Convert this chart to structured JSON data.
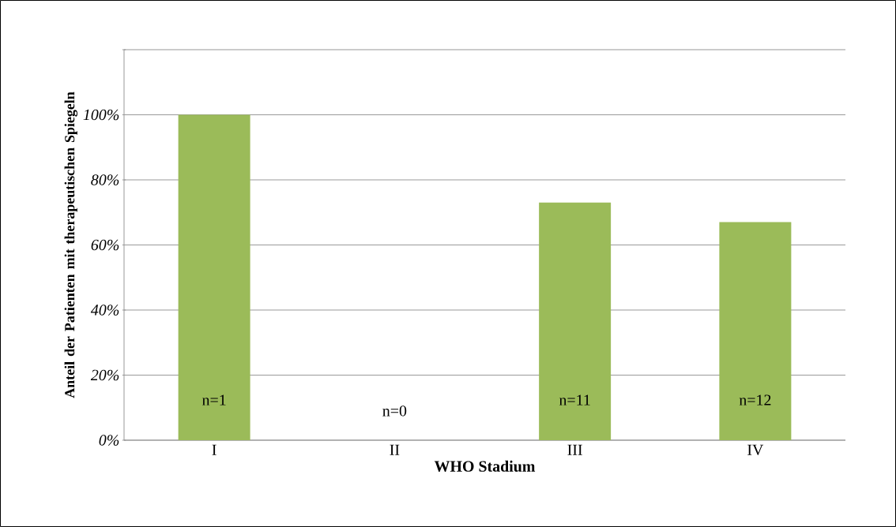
{
  "chart_data": {
    "type": "bar",
    "xlabel": "WHO Stadium",
    "ylabel": "Anteil der Patienten mit therapeutischen Spiegeln",
    "categories": [
      "I",
      "II",
      "III",
      "IV"
    ],
    "values": [
      100,
      0,
      73,
      67
    ],
    "color": "#9bbb59",
    "ylim": [
      0,
      120
    ],
    "yticks": [
      {
        "value": 0,
        "label": "0%"
      },
      {
        "value": 20,
        "label": "20%"
      },
      {
        "value": 40,
        "label": "40%"
      },
      {
        "value": 60,
        "label": "60%"
      },
      {
        "value": 80,
        "label": "80%"
      },
      {
        "value": 100,
        "label": "100%"
      },
      {
        "value": 120,
        "label": null
      }
    ],
    "grid": "y",
    "annotations": [
      "n=1",
      "n=0",
      "n=11",
      "n=12"
    ]
  }
}
